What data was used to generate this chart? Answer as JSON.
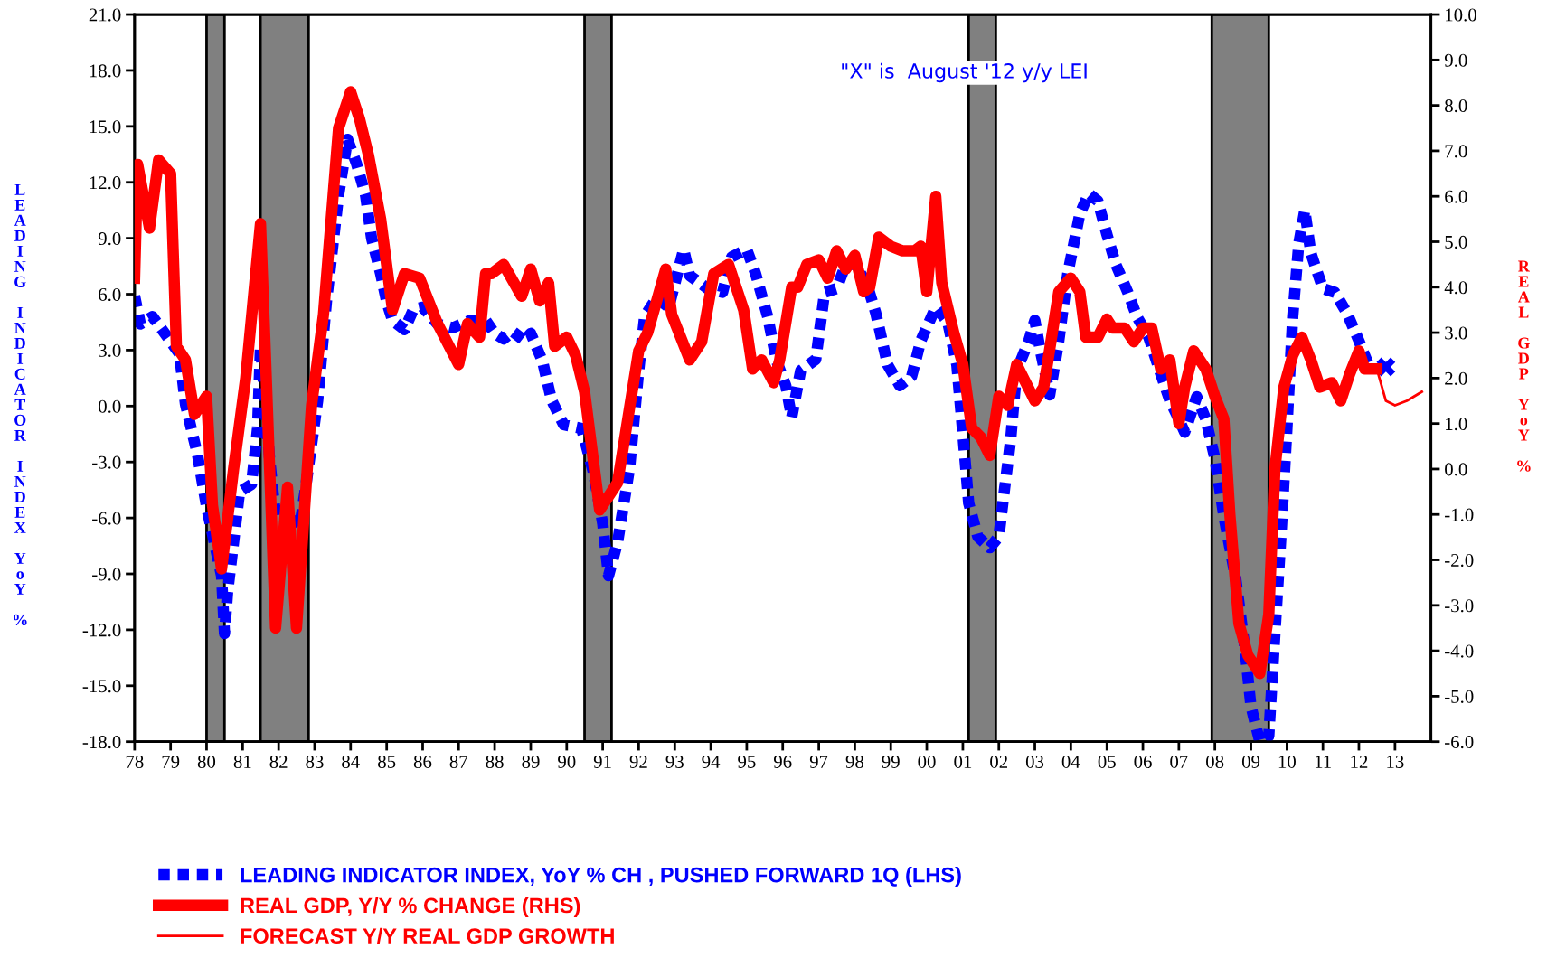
{
  "chart_data": {
    "type": "line",
    "ylabel": "LEADING INDICATOR INDEX YoY %",
    "y2label": "REAL GDP YoY %",
    "xlim": [
      "1978-01",
      "2014-01"
    ],
    "xticks": [
      {
        "value": "1978",
        "label": "78"
      },
      {
        "value": "1979",
        "label": "79"
      },
      {
        "value": "1980",
        "label": "80"
      },
      {
        "value": "1981",
        "label": "81"
      },
      {
        "value": "1982",
        "label": "82"
      },
      {
        "value": "1983",
        "label": "83"
      },
      {
        "value": "1984",
        "label": "84"
      },
      {
        "value": "1985",
        "label": "85"
      },
      {
        "value": "1986",
        "label": "86"
      },
      {
        "value": "1987",
        "label": "87"
      },
      {
        "value": "1988",
        "label": "88"
      },
      {
        "value": "1989",
        "label": "89"
      },
      {
        "value": "1990",
        "label": "90"
      },
      {
        "value": "1991",
        "label": "91"
      },
      {
        "value": "1992",
        "label": "92"
      },
      {
        "value": "1993",
        "label": "93"
      },
      {
        "value": "1994",
        "label": "94"
      },
      {
        "value": "1995",
        "label": "95"
      },
      {
        "value": "1996",
        "label": "96"
      },
      {
        "value": "1997",
        "label": "97"
      },
      {
        "value": "1998",
        "label": "98"
      },
      {
        "value": "1999",
        "label": "99"
      },
      {
        "value": "2000",
        "label": "00"
      },
      {
        "value": "2001",
        "label": "01"
      },
      {
        "value": "2002",
        "label": "02"
      },
      {
        "value": "2003",
        "label": "03"
      },
      {
        "value": "2004",
        "label": "04"
      },
      {
        "value": "2005",
        "label": "05"
      },
      {
        "value": "2006",
        "label": "06"
      },
      {
        "value": "2007",
        "label": "07"
      },
      {
        "value": "2008",
        "label": "08"
      },
      {
        "value": "2009",
        "label": "09"
      },
      {
        "value": "2010",
        "label": "10"
      },
      {
        "value": "2011",
        "label": "11"
      },
      {
        "value": "2012",
        "label": "12"
      },
      {
        "value": "2013",
        "label": "13"
      }
    ],
    "ylim": [
      -18,
      21
    ],
    "yticks": [
      {
        "value": -18,
        "label": "-18.0"
      },
      {
        "value": -15,
        "label": "-15.0"
      },
      {
        "value": -12,
        "label": "-12.0"
      },
      {
        "value": -9,
        "label": "-9.0"
      },
      {
        "value": -6,
        "label": "-6.0"
      },
      {
        "value": -3,
        "label": "-3.0"
      },
      {
        "value": 0,
        "label": "0.0"
      },
      {
        "value": 3,
        "label": "3.0"
      },
      {
        "value": 6,
        "label": "6.0"
      },
      {
        "value": 9,
        "label": "9.0"
      },
      {
        "value": 12,
        "label": "12.0"
      },
      {
        "value": 15,
        "label": "15.0"
      },
      {
        "value": 18,
        "label": "18.0"
      },
      {
        "value": 21,
        "label": "21.0"
      }
    ],
    "y2lim": [
      -6,
      10
    ],
    "y2ticks": [
      {
        "value": -6,
        "label": "-6.0"
      },
      {
        "value": -5,
        "label": "-5.0"
      },
      {
        "value": -4,
        "label": "-4.0"
      },
      {
        "value": -3,
        "label": "-3.0"
      },
      {
        "value": -2,
        "label": "-2.0"
      },
      {
        "value": -1,
        "label": "-1.0"
      },
      {
        "value": 0,
        "label": "0.0"
      },
      {
        "value": 1,
        "label": "1.0"
      },
      {
        "value": 2,
        "label": "2.0"
      },
      {
        "value": 3,
        "label": "3.0"
      },
      {
        "value": 4,
        "label": "4.0"
      },
      {
        "value": 5,
        "label": "5.0"
      },
      {
        "value": 6,
        "label": "6.0"
      },
      {
        "value": 7,
        "label": "7.0"
      },
      {
        "value": 8,
        "label": "8.0"
      },
      {
        "value": 9,
        "label": "9.0"
      },
      {
        "value": 10,
        "label": "10.0"
      }
    ],
    "grid": false,
    "legend": "bottom",
    "marker": "none",
    "bands": [
      {
        "axis": "x",
        "from": "1980-01",
        "to": "1980-07",
        "color": "#808080"
      },
      {
        "axis": "x",
        "from": "1981-07",
        "to": "1982-11",
        "color": "#808080"
      },
      {
        "axis": "x",
        "from": "1990-07",
        "to": "1991-04",
        "color": "#808080"
      },
      {
        "axis": "x",
        "from": "2001-03",
        "to": "2001-12",
        "color": "#808080"
      },
      {
        "axis": "x",
        "from": "2007-12",
        "to": "2009-07",
        "color": "#808080"
      }
    ],
    "annotations": [
      "\"X\" is  August '12 y/y LEI"
    ],
    "series": [
      {
        "name": "LEADING INDICATOR INDEX, YoY % CH , PUSHED FORWARD 1Q (LHS)",
        "color": "#0000ff",
        "line_style": "dashed",
        "x": [
          "1978-01",
          "1978-03",
          "1978-07",
          "1978-12",
          "1979-04",
          "1979-06",
          "1979-10",
          "1980-01",
          "1980-06",
          "1980-07",
          "1980-08",
          "1980-12",
          "1981-04",
          "1981-06",
          "1981-07",
          "1981-10",
          "1981-12",
          "1982-04",
          "1982-08",
          "1982-10",
          "1983-02",
          "1983-05",
          "1983-09",
          "1983-12",
          "1984-03",
          "1984-06",
          "1984-08",
          "1984-11",
          "1985-01",
          "1985-03",
          "1985-07",
          "1985-10",
          "1986-01",
          "1986-06",
          "1986-11",
          "1987-05",
          "1987-10",
          "1988-01",
          "1988-04",
          "1988-07",
          "1988-11",
          "1989-01",
          "1989-05",
          "1989-08",
          "1989-12",
          "1990-06",
          "1990-10",
          "1991-01",
          "1991-03",
          "1991-06",
          "1991-10",
          "1992-01",
          "1992-03",
          "1992-07",
          "1992-11",
          "1993-04",
          "1993-06",
          "1993-12",
          "1994-05",
          "1994-08",
          "1995-01",
          "1995-04",
          "1995-08",
          "1995-11",
          "1996-02",
          "1996-04",
          "1996-07",
          "1996-12",
          "1997-03",
          "1997-07",
          "1997-10",
          "1998-01",
          "1998-05",
          "1998-08",
          "1998-12",
          "1999-04",
          "1999-08",
          "1999-11",
          "2000-04",
          "2000-08",
          "2000-11",
          "2001-01",
          "2001-03",
          "2001-06",
          "2001-10",
          "2002-01",
          "2002-03",
          "2002-05",
          "2002-07",
          "2002-11",
          "2003-01",
          "2003-03",
          "2003-06",
          "2003-09",
          "2003-12",
          "2004-04",
          "2004-07",
          "2004-10",
          "2005-01",
          "2005-04",
          "2005-08",
          "2005-11",
          "2006-03",
          "2006-06",
          "2006-10",
          "2007-01",
          "2007-03",
          "2007-07",
          "2007-10",
          "2008-01",
          "2008-04",
          "2008-08",
          "2008-11",
          "2009-01",
          "2009-04",
          "2009-07",
          "2009-09",
          "2009-11",
          "2010-01",
          "2010-03",
          "2010-05",
          "2010-07",
          "2010-09",
          "2011-01",
          "2011-05",
          "2011-09",
          "2012-01",
          "2012-05"
        ],
        "values": [
          5.9,
          4.4,
          4.8,
          3.7,
          2.8,
          0.1,
          -2.6,
          -5.4,
          -9.1,
          -12.2,
          -10.0,
          -4.6,
          -4.2,
          -1.2,
          3.2,
          -2.8,
          -5.9,
          -5.4,
          -6.5,
          -4.4,
          0.3,
          5.6,
          11.3,
          14.3,
          13.0,
          11.3,
          9.0,
          7.1,
          5.6,
          4.6,
          4.1,
          5.2,
          5.3,
          4.4,
          4.2,
          4.6,
          4.6,
          3.9,
          3.6,
          4.0,
          3.5,
          3.9,
          2.4,
          0.3,
          -1.0,
          -1.2,
          -3.6,
          -6.3,
          -9.1,
          -7.3,
          -3.3,
          1.9,
          4.8,
          5.8,
          5.3,
          8.4,
          7.0,
          6.3,
          6.1,
          8.0,
          8.4,
          7.1,
          4.8,
          2.4,
          1.1,
          -0.6,
          1.9,
          2.5,
          6.1,
          6.3,
          7.6,
          7.6,
          6.6,
          5.0,
          2.2,
          1.1,
          1.6,
          3.5,
          5.3,
          4.5,
          2.2,
          -1.5,
          -5.2,
          -7.0,
          -7.6,
          -7.0,
          -4.4,
          -1.8,
          1.9,
          3.5,
          4.6,
          2.9,
          0.6,
          3.5,
          7.1,
          10.3,
          11.4,
          11.0,
          9.2,
          7.6,
          6.1,
          4.8,
          3.7,
          2.2,
          0.3,
          -0.7,
          -1.4,
          0.5,
          -0.7,
          -2.8,
          -5.9,
          -9.3,
          -13.0,
          -16.1,
          -18.0,
          -17.7,
          -12.2,
          -7.0,
          -1.2,
          4.8,
          8.7,
          10.5,
          8.2,
          6.3,
          6.1,
          5.0,
          3.5,
          1.9
        ]
      },
      {
        "name": "REAL GDP, Y/Y % CHANGE (RHS)",
        "color": "#ff0000",
        "line_style": "solid",
        "axis": "y2",
        "x": [
          "1978-01",
          "1978-02",
          "1978-06",
          "1978-09",
          "1979-01",
          "1979-03",
          "1979-06",
          "1979-09",
          "1980-01",
          "1980-03",
          "1980-06",
          "1980-10",
          "1981-02",
          "1981-07",
          "1981-12",
          "1982-04",
          "1982-07",
          "1982-12",
          "1983-04",
          "1983-09",
          "1984-01",
          "1984-04",
          "1984-07",
          "1984-11",
          "1985-03",
          "1985-07",
          "1985-12",
          "1986-06",
          "1987-01",
          "1987-04",
          "1987-08",
          "1987-10",
          "1987-12",
          "1988-04",
          "1988-10",
          "1989-01",
          "1989-04",
          "1989-07",
          "1989-09",
          "1990-01",
          "1990-04",
          "1990-07",
          "1990-12",
          "1991-06",
          "1992-01",
          "1992-04",
          "1992-10",
          "1992-12",
          "1993-06",
          "1993-10",
          "1994-02",
          "1994-07",
          "1994-12",
          "1995-03",
          "1995-06",
          "1995-10",
          "1995-12",
          "1996-04",
          "1996-06",
          "1996-09",
          "1997-01",
          "1997-04",
          "1997-07",
          "1997-10",
          "1998-01",
          "1998-04",
          "1998-06",
          "1998-09",
          "1999-01",
          "1999-05",
          "1999-09",
          "1999-11",
          "2000-01",
          "2000-04",
          "2000-06",
          "2000-10",
          "2001-01",
          "2001-04",
          "2001-07",
          "2001-10",
          "2002-01",
          "2002-04",
          "2002-07",
          "2002-10",
          "2003-01",
          "2003-04",
          "2003-09",
          "2004-01",
          "2004-04",
          "2004-06",
          "2004-10",
          "2005-01",
          "2005-03",
          "2005-07",
          "2005-10",
          "2006-01",
          "2006-04",
          "2006-07",
          "2006-10",
          "2007-01",
          "2007-03",
          "2007-06",
          "2007-10",
          "2008-01",
          "2008-04",
          "2008-06",
          "2008-09",
          "2008-12",
          "2009-04",
          "2009-07",
          "2009-09",
          "2009-12",
          "2010-03",
          "2010-06",
          "2010-09",
          "2010-12",
          "2011-04",
          "2011-07",
          "2011-10",
          "2012-01",
          "2012-03",
          "2012-07"
        ],
        "values": [
          4.2,
          6.7,
          5.3,
          6.8,
          6.5,
          2.7,
          2.4,
          1.2,
          1.6,
          -0.8,
          -2.2,
          0.0,
          2.0,
          5.4,
          -3.5,
          -0.4,
          -3.5,
          1.4,
          3.4,
          7.5,
          8.3,
          7.7,
          6.9,
          5.5,
          3.5,
          4.3,
          4.2,
          3.2,
          2.3,
          3.2,
          2.9,
          4.3,
          4.3,
          4.5,
          3.8,
          4.4,
          3.7,
          4.1,
          2.7,
          2.9,
          2.5,
          1.7,
          -0.9,
          -0.3,
          2.6,
          3.0,
          4.4,
          3.4,
          2.4,
          2.8,
          4.3,
          4.5,
          3.5,
          2.2,
          2.4,
          1.9,
          2.4,
          4.0,
          4.0,
          4.5,
          4.6,
          4.2,
          4.8,
          4.4,
          4.7,
          3.9,
          4.0,
          5.1,
          4.9,
          4.8,
          4.8,
          4.9,
          3.9,
          6.0,
          4.1,
          3.0,
          2.3,
          0.9,
          0.7,
          0.3,
          1.6,
          1.4,
          2.3,
          1.9,
          1.5,
          1.8,
          3.9,
          4.2,
          3.9,
          2.9,
          2.9,
          3.3,
          3.1,
          3.1,
          2.8,
          3.1,
          3.1,
          2.2,
          2.4,
          1.0,
          1.8,
          2.6,
          2.2,
          1.6,
          1.1,
          -1.0,
          -3.4,
          -4.1,
          -4.5,
          -3.2,
          0.0,
          1.8,
          2.5,
          2.9,
          2.4,
          1.8,
          1.9,
          1.5,
          2.1,
          2.6,
          2.2,
          2.2
        ]
      },
      {
        "name": "FORECAST Y/Y REAL GDP GROWTH",
        "color": "#ff0000",
        "line_style": "solid",
        "axis": "y2",
        "x": [
          "2012-07",
          "2012-10",
          "2013-01",
          "2013-05",
          "2013-10"
        ],
        "values": [
          2.2,
          1.5,
          1.4,
          1.5,
          1.7
        ]
      },
      {
        "type": "scatter",
        "marker": "cross",
        "color": "#0000ff",
        "x": [
          "2012-10"
        ],
        "values": [
          2.1
        ]
      }
    ]
  }
}
